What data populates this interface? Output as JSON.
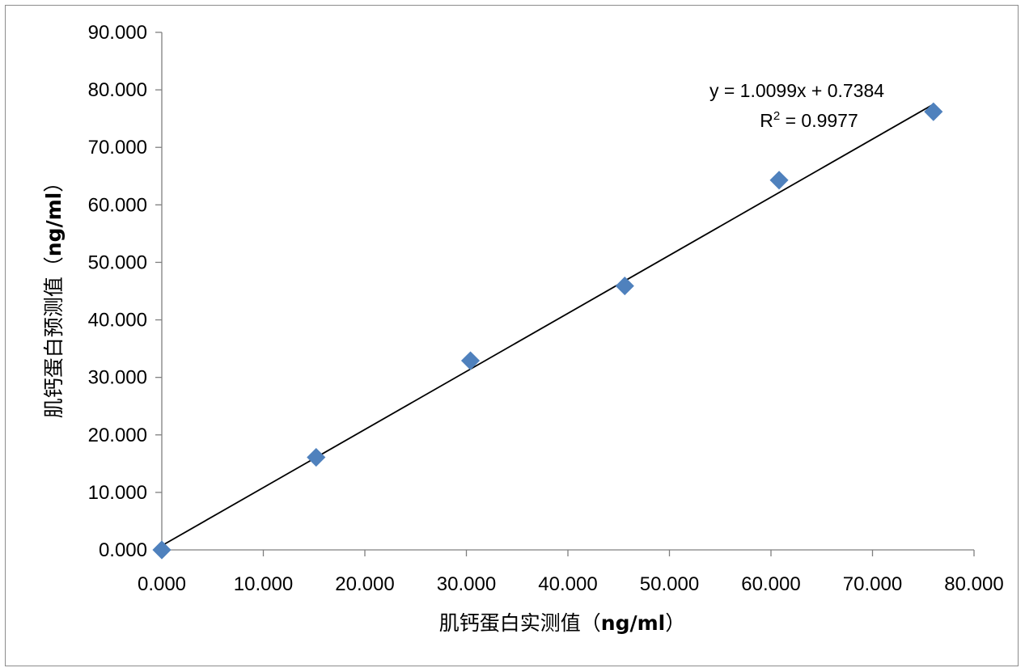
{
  "chart_data": {
    "type": "scatter",
    "x_axis": {
      "label_prefix": "肌钙蛋白实测值（",
      "label_unit": "ng/ml",
      "label_suffix": "）",
      "range": [
        0,
        80
      ],
      "ticks": [
        0,
        10,
        20,
        30,
        40,
        50,
        60,
        70,
        80
      ],
      "tick_labels": [
        "0.000",
        "10.000",
        "20.000",
        "30.000",
        "40.000",
        "50.000",
        "60.000",
        "70.000",
        "80.000"
      ]
    },
    "y_axis": {
      "label_prefix": "肌钙蛋白预测值（",
      "label_unit": "ng/ml",
      "label_suffix": "）",
      "range": [
        0,
        90
      ],
      "ticks": [
        0,
        10,
        20,
        30,
        40,
        50,
        60,
        70,
        80,
        90
      ],
      "tick_labels": [
        "0.000",
        "10.000",
        "20.000",
        "30.000",
        "40.000",
        "50.000",
        "60.000",
        "70.000",
        "80.000",
        "90.000"
      ]
    },
    "series": [
      {
        "marker": "diamond",
        "color": "#4f81bd",
        "points": [
          {
            "x": 0.0,
            "y": 0.0
          },
          {
            "x": 15.2,
            "y": 16.1
          },
          {
            "x": 30.4,
            "y": 32.9
          },
          {
            "x": 45.6,
            "y": 45.9
          },
          {
            "x": 60.8,
            "y": 64.3
          },
          {
            "x": 76.0,
            "y": 76.2
          }
        ]
      }
    ],
    "trendline": {
      "slope": 1.0099,
      "intercept": 0.7384,
      "x_range": [
        0.0,
        76.0
      ],
      "color": "#000000",
      "equation_text": "y = 1.0099x + 0.7384",
      "r2_prefix": "R",
      "r2_sup": "2",
      "r2_suffix": " = 0.9977"
    },
    "grid": false,
    "legend": "none"
  }
}
